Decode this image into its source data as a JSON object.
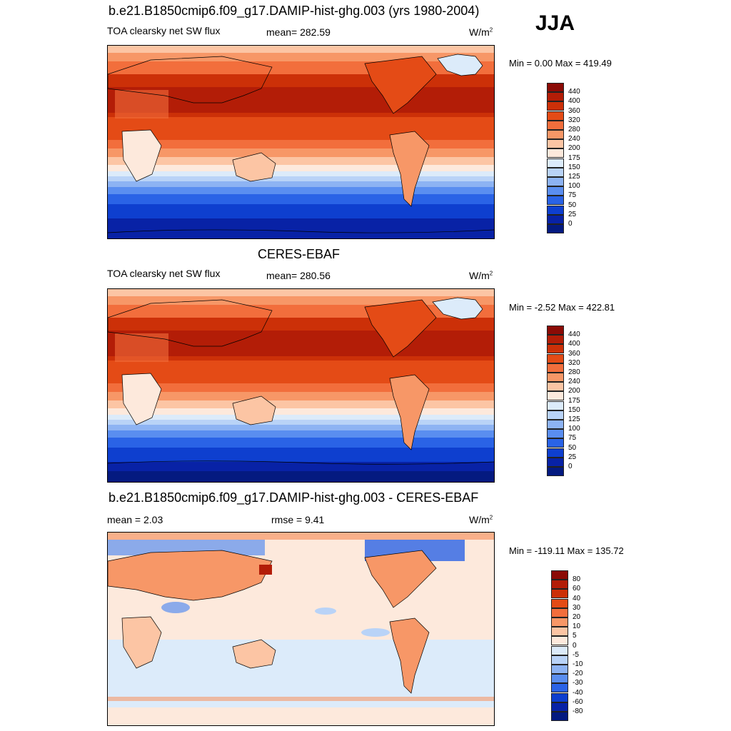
{
  "season": "JJA",
  "panels": [
    {
      "title": "b.e21.B1850cmip6.f09_g17.DAMIP-hist-ghg.003 (yrs 1980-2004)",
      "left": "TOA clearsky net SW flux",
      "center": "mean= 282.59",
      "units": "W/m",
      "units_sup": "2",
      "range": "Min =   0.00 Max = 419.49",
      "kind": "field"
    },
    {
      "title": "CERES-EBAF",
      "left": "TOA clearsky net SW flux",
      "center": "mean= 280.56",
      "units": "W/m",
      "units_sup": "2",
      "range": "Min =  -2.52 Max = 422.81",
      "kind": "field"
    },
    {
      "title": "b.e21.B1850cmip6.f09_g17.DAMIP-hist-ghg.003 - CERES-EBAF",
      "left": "mean =   2.03",
      "center": "rmse =   9.41",
      "units": "W/m",
      "units_sup": "2",
      "range": "Min = -119.11 Max = 135.72",
      "kind": "diff"
    }
  ],
  "colorbars": {
    "field": {
      "labels": [
        "440",
        "400",
        "360",
        "320",
        "280",
        "240",
        "200",
        "175",
        "150",
        "125",
        "100",
        "75",
        "50",
        "25",
        "0"
      ],
      "colors": [
        "#8b0b06",
        "#b31d07",
        "#cc3008",
        "#e44b16",
        "#f26e3c",
        "#f79767",
        "#fcc5a4",
        "#fde9dc",
        "#dcebfa",
        "#b9d3f7",
        "#8db3f3",
        "#5a8ef0",
        "#2a63e6",
        "#0e3fcf",
        "#0822a6",
        "#041a80"
      ]
    },
    "diff": {
      "labels": [
        "80",
        "60",
        "40",
        "30",
        "20",
        "10",
        "5",
        "0",
        "-5",
        "-10",
        "-20",
        "-30",
        "-40",
        "-60",
        "-80"
      ],
      "colors": [
        "#8b0b06",
        "#b31d07",
        "#cc3008",
        "#e44b16",
        "#f26e3c",
        "#f79767",
        "#fcc5a4",
        "#fde9dc",
        "#dcebfa",
        "#b9d3f7",
        "#8db3f3",
        "#5a8ef0",
        "#2a63e6",
        "#0e3fcf",
        "#0822a6",
        "#041a80"
      ]
    }
  }
}
